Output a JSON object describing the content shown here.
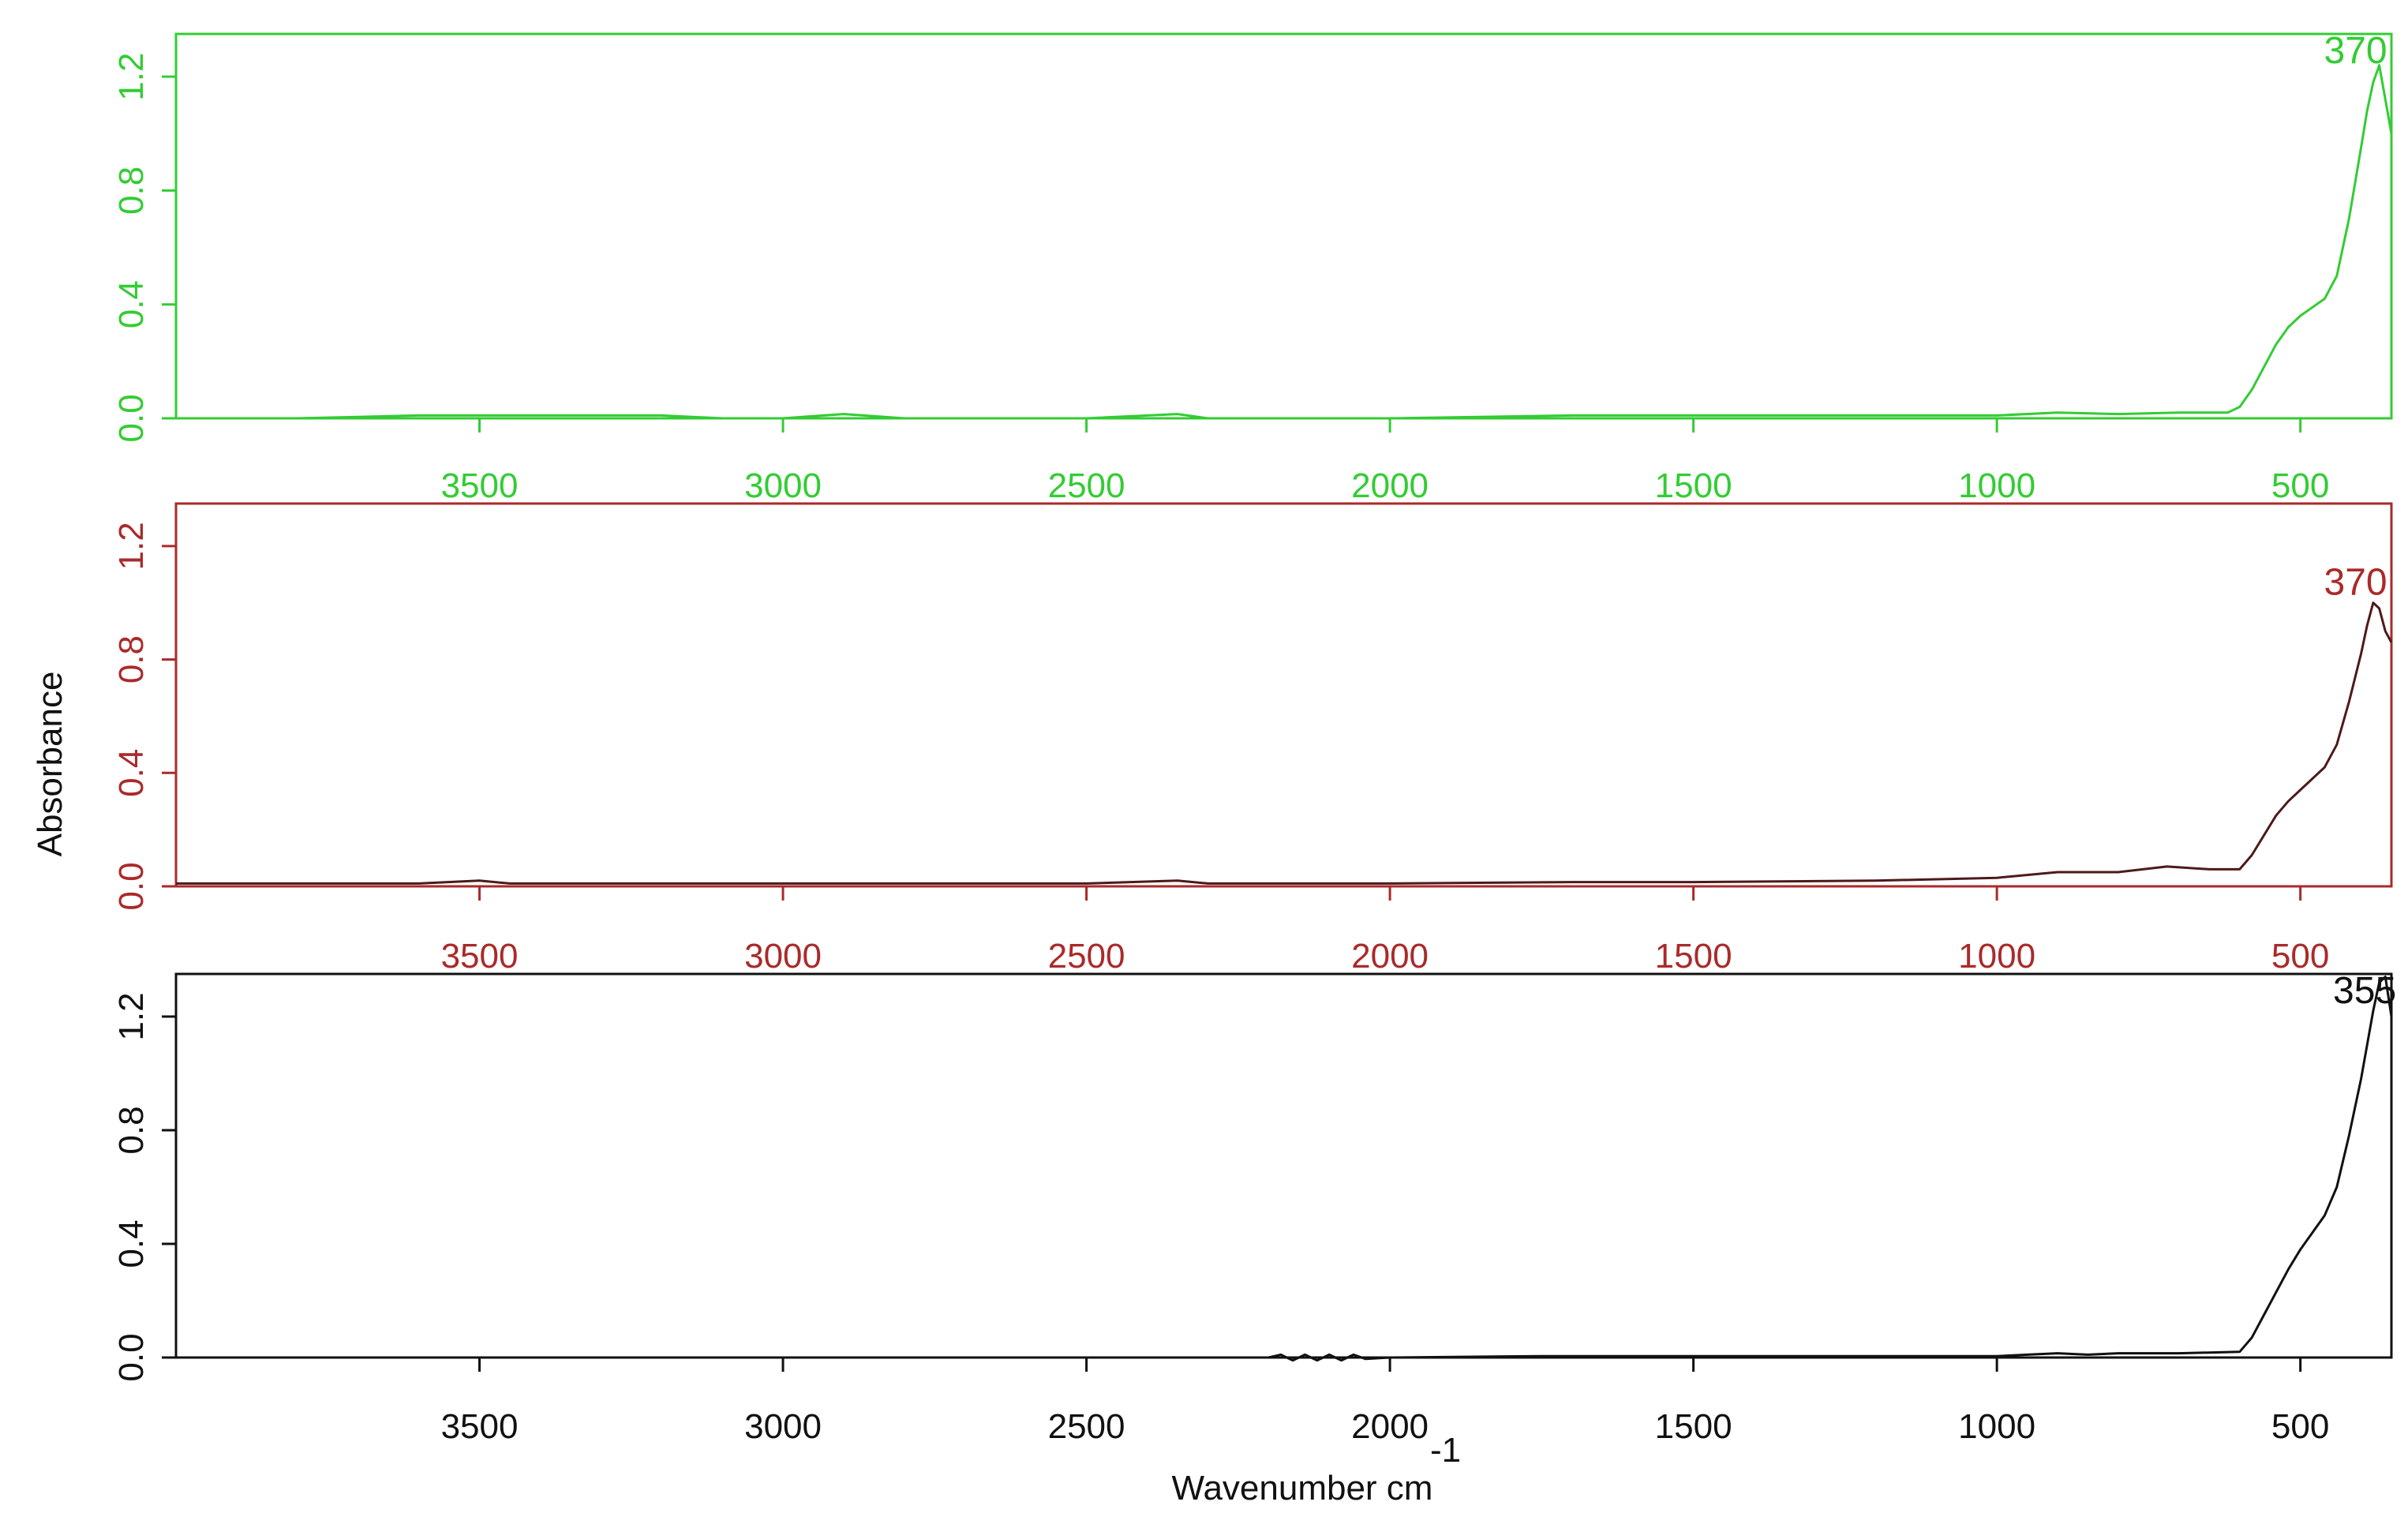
{
  "chart_data": [
    {
      "type": "line",
      "color": "#33cc33",
      "xlim": [
        4000,
        350
      ],
      "ylim": [
        0,
        1.35
      ],
      "x_reversed": true,
      "x_ticks": [
        3500,
        3000,
        2500,
        2000,
        1500,
        1000,
        500
      ],
      "y_ticks": [
        "0.0",
        "0.4",
        "0.8",
        "1.2"
      ],
      "y_tick_values": [
        0,
        0.4,
        0.8,
        1.2
      ],
      "annotations": [
        {
          "x": 370,
          "y": 1.22,
          "text": "370"
        }
      ],
      "series": [
        {
          "x": [
            4000,
            3800,
            3700,
            3600,
            3450,
            3200,
            3100,
            3000,
            2900,
            2800,
            2500,
            2350,
            2300,
            2000,
            1700,
            1500,
            1200,
            1000,
            900,
            800,
            700,
            620,
            600,
            580,
            560,
            540,
            520,
            500,
            480,
            460,
            440,
            420,
            400,
            390,
            380,
            370,
            360,
            350
          ],
          "y": [
            0.0,
            0.0,
            0.005,
            0.01,
            0.01,
            0.01,
            0.0,
            0.0,
            0.015,
            0.0,
            0.0,
            0.015,
            0.0,
            0.0,
            0.01,
            0.01,
            0.01,
            0.01,
            0.02,
            0.015,
            0.02,
            0.02,
            0.04,
            0.1,
            0.18,
            0.26,
            0.32,
            0.36,
            0.39,
            0.42,
            0.5,
            0.7,
            0.95,
            1.08,
            1.18,
            1.24,
            1.12,
            1.0
          ]
        }
      ]
    },
    {
      "type": "line",
      "color": "#aa2a2a",
      "line_color": "#4d1a1a",
      "xlim": [
        4000,
        350
      ],
      "ylim": [
        0,
        1.35
      ],
      "x_reversed": true,
      "x_ticks": [
        3500,
        3000,
        2500,
        2000,
        1500,
        1000,
        500
      ],
      "y_ticks": [
        "0.0",
        "0.4",
        "0.8",
        "1.2"
      ],
      "y_tick_values": [
        0,
        0.4,
        0.8,
        1.2
      ],
      "annotations": [
        {
          "x": 370,
          "y": 1.0,
          "text": "370"
        }
      ],
      "series": [
        {
          "x": [
            4000,
            3800,
            3600,
            3500,
            3450,
            3000,
            2500,
            2350,
            2300,
            2000,
            1700,
            1500,
            1200,
            1000,
            900,
            800,
            720,
            650,
            600,
            580,
            560,
            540,
            520,
            500,
            480,
            460,
            440,
            420,
            400,
            390,
            380,
            370,
            360,
            350
          ],
          "y": [
            0.01,
            0.01,
            0.01,
            0.02,
            0.01,
            0.01,
            0.01,
            0.02,
            0.01,
            0.01,
            0.015,
            0.015,
            0.02,
            0.03,
            0.05,
            0.05,
            0.07,
            0.06,
            0.06,
            0.11,
            0.18,
            0.25,
            0.3,
            0.34,
            0.38,
            0.42,
            0.5,
            0.65,
            0.82,
            0.92,
            1.0,
            0.98,
            0.9,
            0.86
          ]
        }
      ]
    },
    {
      "type": "line",
      "color": "#111111",
      "xlim": [
        4000,
        350
      ],
      "ylim": [
        0,
        1.35
      ],
      "x_reversed": true,
      "x_ticks": [
        3500,
        3000,
        2500,
        2000,
        1500,
        1000,
        500
      ],
      "y_ticks": [
        "0.0",
        "0.4",
        "0.8",
        "1.2"
      ],
      "y_tick_values": [
        0,
        0.4,
        0.8,
        1.2
      ],
      "annotations": [
        {
          "x": 355,
          "y": 1.22,
          "text": "355"
        }
      ],
      "xlabel": "Wavenumber cm",
      "xlabel_superscript": "-1",
      "ylabel": "Absorbance",
      "series": [
        {
          "x": [
            4000,
            3500,
            3000,
            2500,
            2200,
            2180,
            2160,
            2140,
            2120,
            2100,
            2080,
            2060,
            2040,
            2000,
            1750,
            1500,
            1000,
            950,
            900,
            850,
            800,
            700,
            600,
            580,
            560,
            540,
            520,
            500,
            480,
            460,
            440,
            420,
            400,
            390,
            380,
            370,
            360,
            350
          ],
          "y": [
            0.0,
            0.0,
            0.0,
            0.0,
            0.0,
            0.01,
            -0.01,
            0.01,
            -0.01,
            0.01,
            -0.01,
            0.01,
            -0.005,
            0.0,
            0.005,
            0.005,
            0.005,
            0.01,
            0.015,
            0.01,
            0.015,
            0.015,
            0.02,
            0.07,
            0.15,
            0.23,
            0.31,
            0.38,
            0.44,
            0.5,
            0.6,
            0.78,
            0.98,
            1.1,
            1.22,
            1.32,
            1.34,
            1.2
          ]
        }
      ]
    }
  ]
}
